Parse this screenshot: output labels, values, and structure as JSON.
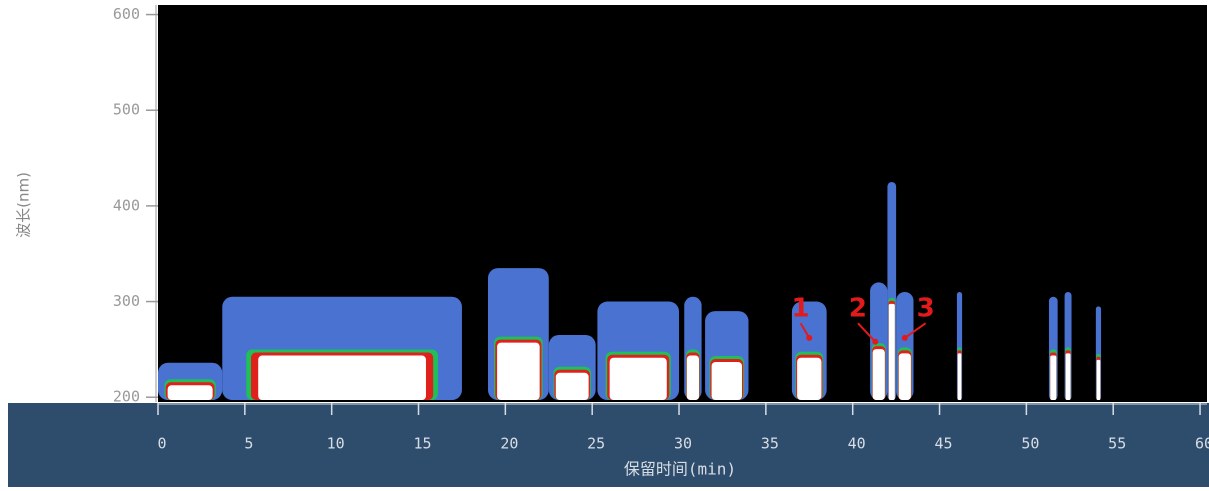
{
  "chart_data": {
    "type": "contour",
    "x_label": "保留时间(min)",
    "y_label": "波长(nm)",
    "xlim": [
      0,
      60.4
    ],
    "ylim": [
      195,
      610
    ],
    "xticks": [
      0,
      5,
      10,
      15,
      20,
      25,
      30,
      35,
      40,
      45,
      50,
      55,
      60
    ],
    "yticks": [
      200,
      300,
      400,
      500,
      600
    ],
    "background": "#000000",
    "colors": {
      "outer": "#4a72d0",
      "core": "#ffffff",
      "edge": "#e0201a",
      "mid": "#1fbf5a"
    },
    "peaks": [
      {
        "x": [
          0,
          3.7
        ],
        "top": 236
      },
      {
        "x": [
          3.7,
          17.5
        ],
        "top": 305
      },
      {
        "x": [
          19,
          22.5
        ],
        "top": 335
      },
      {
        "x": [
          22.5,
          25.2
        ],
        "top": 265
      },
      {
        "x": [
          25.3,
          30
        ],
        "top": 300
      },
      {
        "x": [
          30.3,
          31.3
        ],
        "top": 305
      },
      {
        "x": [
          31.5,
          34
        ],
        "top": 290
      },
      {
        "x": [
          36.5,
          38.5
        ],
        "top": 300
      },
      {
        "x": [
          41,
          42
        ],
        "top": 320
      },
      {
        "x": [
          42,
          42.5
        ],
        "top": 425
      },
      {
        "x": [
          42.5,
          43.5
        ],
        "top": 310
      },
      {
        "x": [
          46,
          46.3
        ],
        "top": 310
      },
      {
        "x": [
          51.3,
          51.8
        ],
        "top": 305
      },
      {
        "x": [
          52.2,
          52.6
        ],
        "top": 310
      },
      {
        "x": [
          54,
          54.3
        ],
        "top": 295
      }
    ],
    "annotations": [
      {
        "text": "1",
        "x": 37,
        "y": 292,
        "target": [
          37.5,
          262
        ]
      },
      {
        "text": "2",
        "x": 40.3,
        "y": 292,
        "target": [
          41.3,
          258
        ]
      },
      {
        "text": "3",
        "x": 44.2,
        "y": 292,
        "target": [
          43,
          262
        ]
      }
    ],
    "annotation_color": "#e31a1c"
  }
}
